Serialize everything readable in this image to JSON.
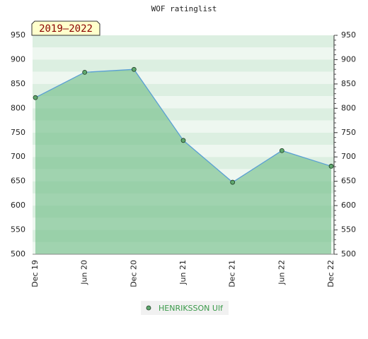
{
  "chart_data": {
    "type": "line",
    "title": "WOF ratinglist",
    "annotation": "2019–2022",
    "categories": [
      "Dec 19",
      "Jun 20",
      "Dec 20",
      "Jun 21",
      "Dec 21",
      "Jun 22",
      "Dec 22"
    ],
    "series": [
      {
        "name": "HENRIKSSON Ulf",
        "color": "#5a9fd4",
        "fill": "#6dbb84",
        "marker": "#5fa86e",
        "values": [
          822,
          874,
          880,
          734,
          648,
          713,
          681
        ]
      }
    ],
    "ylim": [
      500,
      950
    ],
    "yticks": [
      500,
      550,
      600,
      650,
      700,
      750,
      800,
      850,
      900,
      950
    ],
    "grid": true
  }
}
